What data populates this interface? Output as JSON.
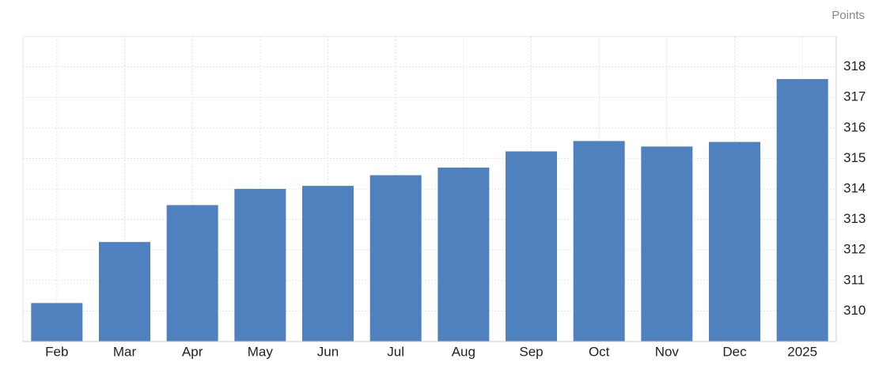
{
  "chart_data": {
    "type": "bar",
    "y_axis_label": "Points",
    "categories": [
      "Feb",
      "Mar",
      "Apr",
      "May",
      "Jun",
      "Jul",
      "Aug",
      "Sep",
      "Oct",
      "Nov",
      "Dec",
      "2025"
    ],
    "values": [
      310.26,
      312.26,
      313.47,
      314.0,
      314.1,
      314.45,
      314.7,
      315.23,
      315.57,
      315.39,
      315.54,
      317.6
    ],
    "color": "#4f81bf",
    "ylim": [
      309,
      319
    ],
    "yticks": [
      310,
      311,
      312,
      313,
      314,
      315,
      316,
      317,
      318
    ],
    "grid": true
  }
}
